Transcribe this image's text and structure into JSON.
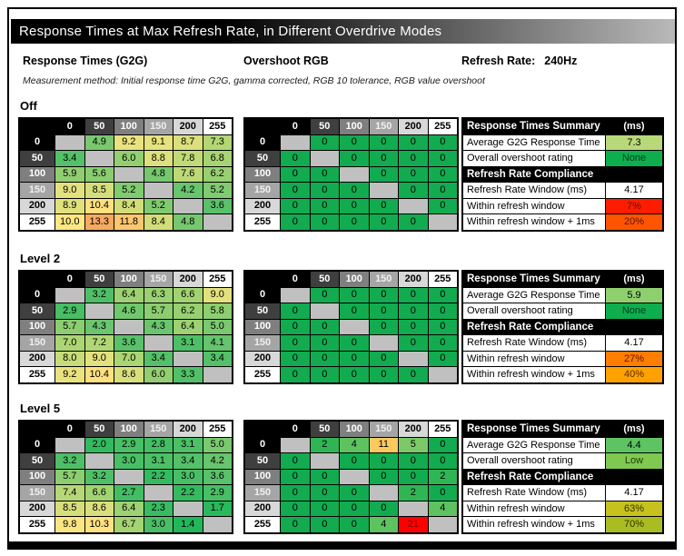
{
  "title": "Response Times at Max Refresh Rate, in Different Overdrive Modes",
  "header": {
    "g2g_label": "Response Times (G2G)",
    "overshoot_label": "Overshoot RGB",
    "refresh_rate_label": "Refresh Rate:",
    "refresh_rate_value": "240Hz",
    "method_note": "Measurement method: Initial response time G2G, gamma corrected, RGB 10 tolerance, RGB value overshoot"
  },
  "axis_labels": [
    "0",
    "50",
    "100",
    "150",
    "200",
    "255"
  ],
  "header_shades": [
    "#000000",
    "#3f3f3f",
    "#7f7f7f",
    "#a5a5a5",
    "#d8d8d8",
    "#ffffff"
  ],
  "header_text_colors": [
    "#ffffff",
    "#ffffff",
    "#ffffff",
    "#f0f0f0",
    "#000000",
    "#000000"
  ],
  "colors": {
    "diagonal": "#c0c0c0",
    "grid_line": "#000000",
    "hot_text": "#7a0000"
  },
  "g2g_scale": [
    [
      0,
      "#00b050"
    ],
    [
      4,
      "#63c36d"
    ],
    [
      7,
      "#abd573"
    ],
    [
      10,
      "#ffe783"
    ],
    [
      14,
      "#f49d58"
    ],
    [
      21,
      "#f03020"
    ]
  ],
  "overshoot_scale": [
    [
      0,
      "#12ab50"
    ],
    [
      3,
      "#3fba58"
    ],
    [
      5,
      "#7cc96a"
    ],
    [
      8,
      "#c4d977"
    ],
    [
      11,
      "#fcc95e"
    ],
    [
      15,
      "#fd8b42"
    ],
    [
      21,
      "#fe0000"
    ]
  ],
  "summary_labels": {
    "title": "Response Times Summary",
    "unit": "(ms)",
    "avg": "Average G2G Response Time",
    "overshoot": "Overall overshoot rating",
    "compliance": "Refresh Rate Compliance",
    "window": "Refresh Rate Window (ms)",
    "within": "Within refresh window",
    "within1ms": "Within refresh window + 1ms"
  },
  "sections": [
    {
      "name": "Off",
      "g2g": [
        [
          null,
          "4.9",
          "9.2",
          "9.1",
          "8.7",
          "7.3"
        ],
        [
          "3.4",
          null,
          "6.0",
          "8.8",
          "7.8",
          "6.8"
        ],
        [
          "5.9",
          "5.6",
          null,
          "4.8",
          "7.6",
          "6.2"
        ],
        [
          "9.0",
          "8.5",
          "5.2",
          null,
          "4.2",
          "5.2"
        ],
        [
          "8.9",
          "10.4",
          "8.4",
          "5.2",
          null,
          "3.6"
        ],
        [
          "10.0",
          "13.3",
          "11.8",
          "8.4",
          "4.8",
          null
        ]
      ],
      "overshoot": [
        [
          null,
          "0",
          "0",
          "0",
          "0",
          "0"
        ],
        [
          "0",
          null,
          "0",
          "0",
          "0",
          "0"
        ],
        [
          "0",
          "0",
          null,
          "0",
          "0",
          "0"
        ],
        [
          "0",
          "0",
          "0",
          null,
          "0",
          "0"
        ],
        [
          "0",
          "0",
          "0",
          "0",
          null,
          "0"
        ],
        [
          "0",
          "0",
          "0",
          "0",
          "0",
          null
        ]
      ],
      "summary": {
        "avg": {
          "value": "7.3",
          "bg": "#b9d87a",
          "fg": "#000000"
        },
        "overshoot": {
          "value": "None",
          "bg": "#0ead4e",
          "fg": "#003f1c"
        },
        "window": {
          "value": "4.17",
          "bg": "#ffffff",
          "fg": "#000000"
        },
        "within": {
          "value": "7%",
          "bg": "#fe1d00",
          "fg": "#611000"
        },
        "within1ms": {
          "value": "20%",
          "bg": "#ff5500",
          "fg": "#611000"
        }
      }
    },
    {
      "name": "Level 2",
      "g2g": [
        [
          null,
          "3.2",
          "6.4",
          "6.3",
          "6.6",
          "9.0"
        ],
        [
          "2.9",
          null,
          "4.6",
          "5.7",
          "6.2",
          "5.8"
        ],
        [
          "5.7",
          "4.3",
          null,
          "4.3",
          "6.4",
          "5.0"
        ],
        [
          "7.0",
          "7.2",
          "3.6",
          null,
          "3.1",
          "4.1"
        ],
        [
          "8.0",
          "9.0",
          "7.0",
          "3.4",
          null,
          "3.4"
        ],
        [
          "9.2",
          "10.4",
          "8.6",
          "6.0",
          "3.3",
          null
        ]
      ],
      "overshoot": [
        [
          null,
          "0",
          "0",
          "0",
          "0",
          "0"
        ],
        [
          "0",
          null,
          "0",
          "0",
          "0",
          "0"
        ],
        [
          "0",
          "0",
          null,
          "0",
          "0",
          "0"
        ],
        [
          "0",
          "0",
          "0",
          null,
          "0",
          "0"
        ],
        [
          "0",
          "0",
          "0",
          "0",
          null,
          "0"
        ],
        [
          "0",
          "0",
          "0",
          "0",
          "0",
          null
        ]
      ],
      "summary": {
        "avg": {
          "value": "5.9",
          "bg": "#8fd06e",
          "fg": "#000000"
        },
        "overshoot": {
          "value": "None",
          "bg": "#0ead4e",
          "fg": "#003f1c"
        },
        "window": {
          "value": "4.17",
          "bg": "#ffffff",
          "fg": "#000000"
        },
        "within": {
          "value": "27%",
          "bg": "#ff7d00",
          "fg": "#611000"
        },
        "within1ms": {
          "value": "40%",
          "bg": "#ffa200",
          "fg": "#5b2b00"
        }
      }
    },
    {
      "name": "Level 5",
      "g2g": [
        [
          null,
          "2.0",
          "2.9",
          "2.8",
          "3.1",
          "5.0"
        ],
        [
          "3.2",
          null,
          "3.0",
          "3.1",
          "3.4",
          "4.2"
        ],
        [
          "5.7",
          "3.2",
          null,
          "2.2",
          "3.0",
          "3.6"
        ],
        [
          "7.4",
          "6.6",
          "2.7",
          null,
          "2.2",
          "2.9"
        ],
        [
          "8.5",
          "8.6",
          "6.4",
          "2.3",
          null,
          "1.7"
        ],
        [
          "9.8",
          "10.3",
          "6.7",
          "3.0",
          "1.4",
          null
        ]
      ],
      "overshoot": [
        [
          null,
          "2",
          "4",
          "11",
          "5",
          "0"
        ],
        [
          "0",
          null,
          "0",
          "0",
          "0",
          "0"
        ],
        [
          "0",
          "0",
          null,
          "0",
          "0",
          "2"
        ],
        [
          "0",
          "0",
          "0",
          null,
          "2",
          "0"
        ],
        [
          "0",
          "0",
          "0",
          "0",
          null,
          "4"
        ],
        [
          "0",
          "0",
          "0",
          "4",
          "21",
          null
        ]
      ],
      "summary": {
        "avg": {
          "value": "4.4",
          "bg": "#5ec363",
          "fg": "#000000"
        },
        "overshoot": {
          "value": "Low",
          "bg": "#7fc951",
          "fg": "#1d3b00"
        },
        "window": {
          "value": "4.17",
          "bg": "#ffffff",
          "fg": "#000000"
        },
        "within": {
          "value": "63%",
          "bg": "#c6c11d",
          "fg": "#323200"
        },
        "within1ms": {
          "value": "70%",
          "bg": "#a9bd22",
          "fg": "#323200"
        }
      }
    }
  ]
}
